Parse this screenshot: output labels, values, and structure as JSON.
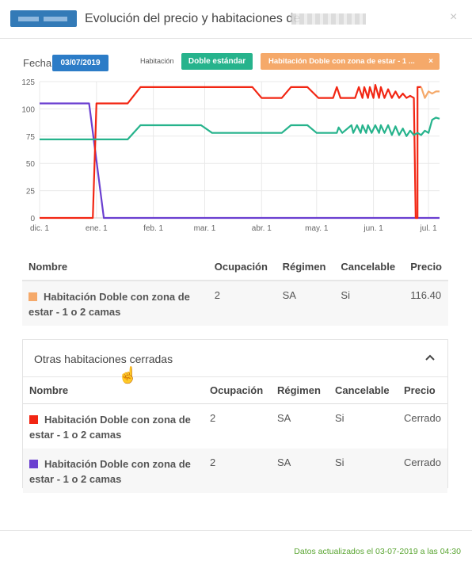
{
  "header": {
    "title": "Evolución del precio y habitaciones de",
    "close_label": "×"
  },
  "filters": {
    "fecha_label": "Fecha",
    "date": "03/07/2019",
    "habitacion_label": "Habitación",
    "tag_green": "Doble estándar",
    "tag_orange": "Habitación Doble con zona de estar - 1 ...",
    "tag_orange_remove": "×"
  },
  "colors": {
    "green": "#26b38c",
    "orange": "#f5a96a",
    "red": "#f22613",
    "purple": "#6a3fd0",
    "blue": "#2c7cc7",
    "footer_green": "#5aa532"
  },
  "chart_data": {
    "type": "line",
    "ylim": [
      0,
      125
    ],
    "yticks": [
      "0",
      "25",
      "50",
      "75",
      "100",
      "125"
    ],
    "xticks": [
      "dic. 1",
      "ene. 1",
      "feb. 1",
      "mar. 1",
      "abr. 1",
      "may. 1",
      "jun. 1",
      "jul. 1"
    ],
    "grid": true,
    "series": [
      {
        "color": "#6a3fd0",
        "points": [
          [
            "2018-12-01",
            105
          ],
          [
            "2018-12-28",
            105
          ],
          [
            "2019-01-05",
            0
          ],
          [
            "2019-07-07",
            0
          ]
        ]
      },
      {
        "color": "#f22613",
        "points": [
          [
            "2018-12-01",
            0
          ],
          [
            "2018-12-30",
            0
          ],
          [
            "2019-01-01",
            105
          ],
          [
            "2019-01-18",
            105
          ],
          [
            "2019-01-25",
            120
          ],
          [
            "2019-03-27",
            120
          ],
          [
            "2019-04-01",
            110
          ],
          [
            "2019-04-12",
            110
          ],
          [
            "2019-04-17",
            120
          ],
          [
            "2019-04-26",
            120
          ],
          [
            "2019-05-02",
            110
          ],
          [
            "2019-05-10",
            110
          ],
          [
            "2019-05-12",
            120
          ],
          [
            "2019-05-14",
            110
          ],
          [
            "2019-05-22",
            110
          ],
          [
            "2019-05-24",
            120
          ],
          [
            "2019-05-26",
            110
          ],
          [
            "2019-05-27",
            120
          ],
          [
            "2019-05-29",
            110
          ],
          [
            "2019-05-30",
            120
          ],
          [
            "2019-06-01",
            110
          ],
          [
            "2019-06-02",
            122
          ],
          [
            "2019-06-04",
            110
          ],
          [
            "2019-06-05",
            120
          ],
          [
            "2019-06-07",
            110
          ],
          [
            "2019-06-09",
            118
          ],
          [
            "2019-06-11",
            110
          ],
          [
            "2019-06-13",
            116
          ],
          [
            "2019-06-15",
            110
          ],
          [
            "2019-06-17",
            114
          ],
          [
            "2019-06-19",
            110
          ],
          [
            "2019-06-21",
            112
          ],
          [
            "2019-06-23",
            110
          ],
          [
            "2019-06-24",
            0
          ],
          [
            "2019-06-25",
            0
          ],
          [
            "2019-06-25",
            120
          ],
          [
            "2019-06-27",
            120
          ]
        ]
      },
      {
        "color": "#f5a96a",
        "points": [
          [
            "2019-06-27",
            120
          ],
          [
            "2019-06-29",
            110
          ],
          [
            "2019-07-01",
            116
          ],
          [
            "2019-07-03",
            114
          ],
          [
            "2019-07-05",
            116
          ],
          [
            "2019-07-07",
            116
          ]
        ]
      },
      {
        "color": "#26b38c",
        "points": [
          [
            "2018-12-01",
            72
          ],
          [
            "2019-01-15",
            72
          ],
          [
            "2019-01-18",
            72
          ],
          [
            "2019-01-25",
            85
          ],
          [
            "2019-02-27",
            85
          ],
          [
            "2019-03-05",
            78
          ],
          [
            "2019-04-12",
            78
          ],
          [
            "2019-04-17",
            85
          ],
          [
            "2019-04-26",
            85
          ],
          [
            "2019-05-01",
            78
          ],
          [
            "2019-05-12",
            78
          ],
          [
            "2019-05-13",
            83
          ],
          [
            "2019-05-15",
            78
          ],
          [
            "2019-05-20",
            85
          ],
          [
            "2019-05-21",
            78
          ],
          [
            "2019-05-23",
            85
          ],
          [
            "2019-05-25",
            78
          ],
          [
            "2019-05-26",
            85
          ],
          [
            "2019-05-28",
            78
          ],
          [
            "2019-05-29",
            85
          ],
          [
            "2019-05-31",
            78
          ],
          [
            "2019-06-02",
            85
          ],
          [
            "2019-06-04",
            78
          ],
          [
            "2019-06-05",
            85
          ],
          [
            "2019-06-07",
            78
          ],
          [
            "2019-06-09",
            85
          ],
          [
            "2019-06-11",
            76
          ],
          [
            "2019-06-13",
            84
          ],
          [
            "2019-06-15",
            76
          ],
          [
            "2019-06-17",
            82
          ],
          [
            "2019-06-19",
            75
          ],
          [
            "2019-06-21",
            80
          ],
          [
            "2019-06-23",
            76
          ],
          [
            "2019-06-25",
            78
          ],
          [
            "2019-06-27",
            76
          ],
          [
            "2019-06-29",
            80
          ],
          [
            "2019-07-01",
            78
          ],
          [
            "2019-07-03",
            90
          ],
          [
            "2019-07-05",
            92
          ],
          [
            "2019-07-07",
            91
          ]
        ]
      }
    ]
  },
  "current_table": {
    "headers": [
      "Nombre",
      "Ocupación",
      "Régimen",
      "Cancelable",
      "Precio"
    ],
    "rows": [
      {
        "color": "#f5a96a",
        "name": "Habitación Doble con zona de estar - 1 o 2 camas",
        "ocupacion": "2",
        "regimen": "SA",
        "cancelable": "Si",
        "precio": "116.40"
      }
    ]
  },
  "closed_panel": {
    "title": "Otras habitaciones cerradas",
    "toggle_icon": "chevron-up",
    "headers": [
      "Nombre",
      "Ocupación",
      "Régimen",
      "Cancelable",
      "Precio"
    ],
    "rows": [
      {
        "color": "#f22613",
        "name": "Habitación Doble con zona de estar - 1 o 2 camas",
        "ocupacion": "2",
        "regimen": "SA",
        "cancelable": "Si",
        "precio": "Cerrado"
      },
      {
        "color": "#6a3fd0",
        "name": "Habitación Doble con zona de estar - 1 o 2 camas",
        "ocupacion": "2",
        "regimen": "SA",
        "cancelable": "Si",
        "precio": "Cerrado"
      }
    ]
  },
  "footer": {
    "text": "Datos actualizados el 03-07-2019 a las 04:30"
  }
}
